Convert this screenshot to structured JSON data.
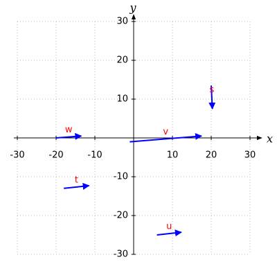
{
  "chart_data": {
    "type": "vector",
    "xlabel": "x",
    "ylabel": "y",
    "xlim": [
      -30,
      30
    ],
    "ylim": [
      -30,
      30
    ],
    "xticks": [
      -30,
      -20,
      -10,
      10,
      20,
      30
    ],
    "yticks": [
      -30,
      -20,
      -10,
      10,
      20,
      30
    ],
    "grid": true,
    "color": "#0000ff",
    "label_color": "#ff0000",
    "vectors": [
      {
        "name": "w",
        "x0": -20,
        "y0": 0,
        "x1": -13.5,
        "y1": 0.5
      },
      {
        "name": "t",
        "x0": -18,
        "y0": -13,
        "x1": -11.5,
        "y1": -12.3
      },
      {
        "name": "v",
        "x0": -1,
        "y0": -1,
        "x1": 17.5,
        "y1": 0.5
      },
      {
        "name": "s",
        "x0": 20,
        "y0": 13.5,
        "x1": 20.3,
        "y1": 7.5
      },
      {
        "name": "u",
        "x0": 6,
        "y0": -25,
        "x1": 12.3,
        "y1": -24.3
      }
    ]
  }
}
